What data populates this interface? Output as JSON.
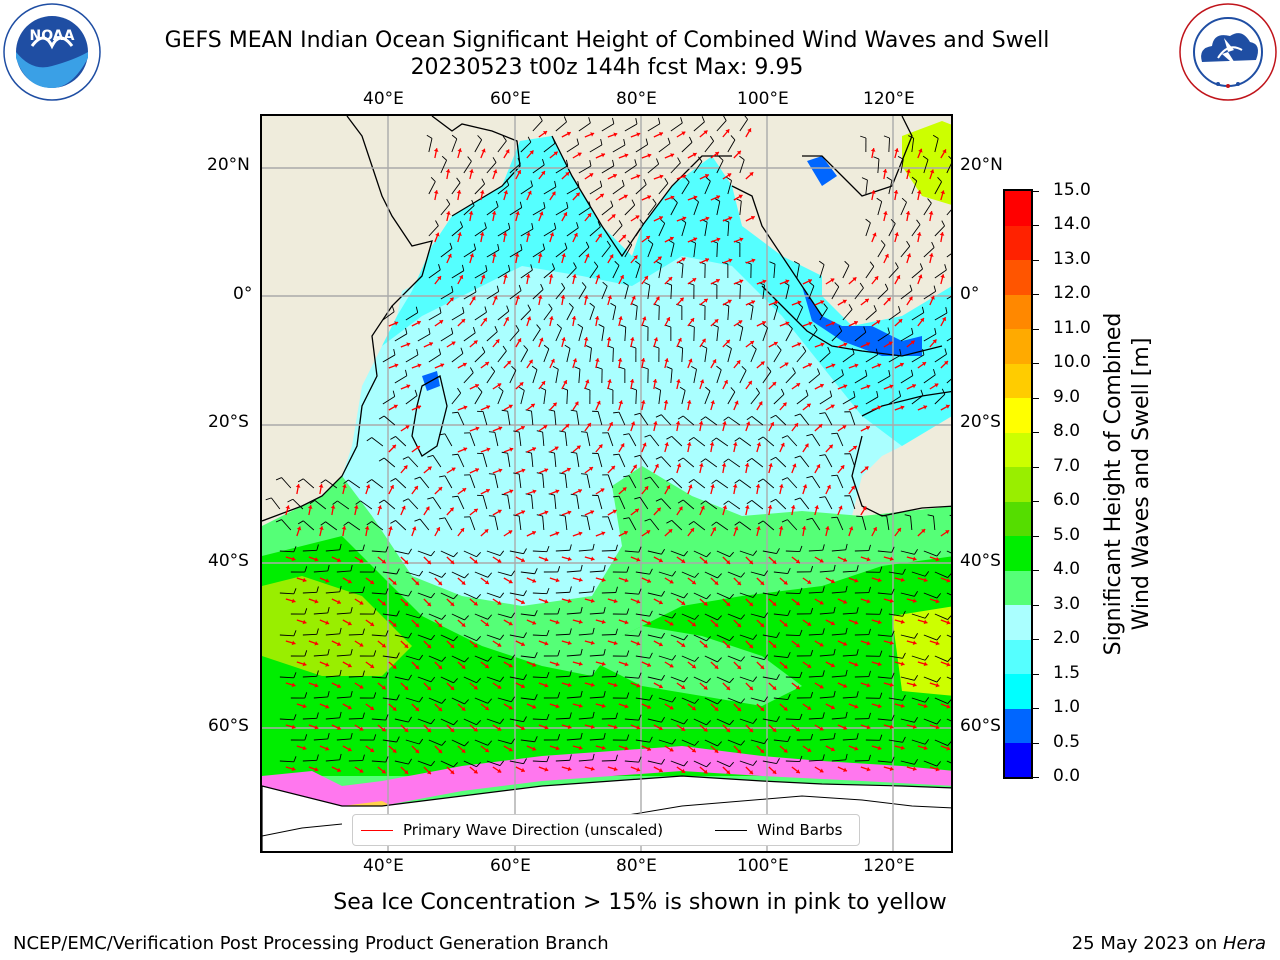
{
  "header": {
    "title_line1": "GEFS MEAN Indian Ocean Significant Height of Combined Wind Waves and Swell",
    "title_line2": "20230523 t00z 144h fcst   Max: 9.95"
  },
  "logos": {
    "noaa_text": "NOAA",
    "noaa_ring": "NATIONAL OCEANIC AND ATMOSPHERIC ADMINISTRATION · U.S. DEPARTMENT OF COMMERCE",
    "nws_ring": "NATIONAL WEATHER SERVICE"
  },
  "map": {
    "lon_ticks": [
      "40°E",
      "60°E",
      "80°E",
      "100°E",
      "120°E"
    ],
    "lat_ticks": [
      "20°N",
      "0°",
      "20°S",
      "40°S",
      "60°S"
    ],
    "legend": {
      "wave_label": "Primary Wave Direction (unscaled)",
      "wave_color": "#ff0000",
      "wind_label": "Wind Barbs",
      "wind_color": "#000000"
    },
    "land_color": "#efecdc"
  },
  "colorbar": {
    "label_line1": "Significant Height of Combined",
    "label_line2": "Wind Waves and Swell [m]",
    "ticks": [
      "0.0",
      "0.5",
      "1.0",
      "1.5",
      "2.0",
      "3.0",
      "4.0",
      "5.0",
      "6.0",
      "7.0",
      "8.0",
      "9.0",
      "10.0",
      "11.0",
      "12.0",
      "13.0",
      "14.0",
      "15.0"
    ],
    "colors": [
      "#0000ff",
      "#0066ff",
      "#00ffff",
      "#55ffff",
      "#aaffff",
      "#55ff77",
      "#00ee00",
      "#55dd00",
      "#99ee00",
      "#ccff00",
      "#ffff00",
      "#ffcc00",
      "#ffaa00",
      "#ff8800",
      "#ff5500",
      "#ff2200",
      "#ff0000"
    ]
  },
  "caption": "Sea Ice Concentration > 15% is shown in pink to yellow",
  "footer": {
    "left": "NCEP/EMC/Verification Post Processing Product Generation Branch",
    "right_prefix": "25 May 2023 on ",
    "right_host": "Hera"
  }
}
